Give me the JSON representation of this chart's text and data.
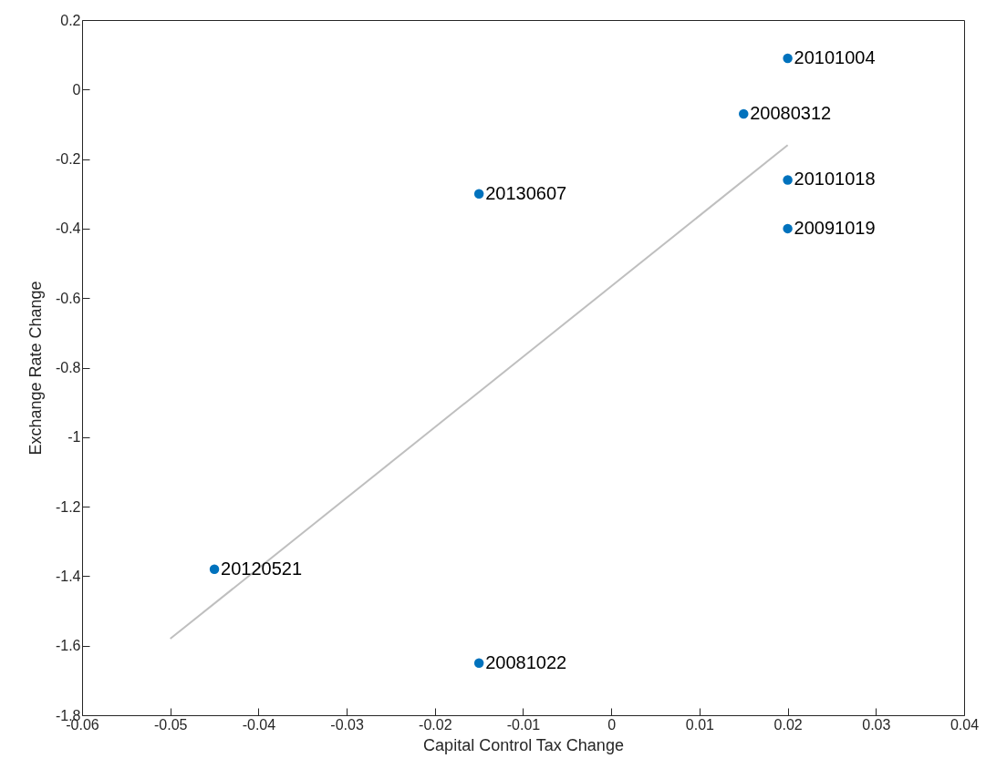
{
  "chart_data": {
    "type": "scatter",
    "xlabel": "Capital Control Tax Change",
    "ylabel": "Exchange Rate Change",
    "xlim": [
      -0.06,
      0.04
    ],
    "xticks": [
      -0.06,
      -0.05,
      -0.04,
      -0.03,
      -0.02,
      -0.01,
      0,
      0.01,
      0.02,
      0.03,
      0.04
    ],
    "ylim": [
      -1.8,
      0.2
    ],
    "yticks": [
      -1.8,
      -1.6,
      -1.4,
      -1.2,
      -1,
      -0.8,
      -0.6,
      -0.4,
      -0.2,
      0,
      0.2
    ],
    "series": [
      {
        "marker": "circle",
        "color": "#0072bd",
        "x": [
          0.02,
          0.015,
          0.02,
          0.02,
          -0.015,
          -0.045,
          -0.015
        ],
        "values": [
          0.09,
          -0.07,
          -0.26,
          -0.4,
          -0.3,
          -1.38,
          -1.65
        ]
      },
      {
        "type": "line",
        "color": "#bfbfbf",
        "x": [
          -0.05,
          0.02
        ],
        "values": [
          -1.58,
          -0.16
        ]
      }
    ],
    "annotations": [
      {
        "text": "20101004",
        "x": 0.02,
        "y": 0.09
      },
      {
        "text": "20080312",
        "x": 0.015,
        "y": -0.07
      },
      {
        "text": "20101018",
        "x": 0.02,
        "y": -0.26
      },
      {
        "text": "20091019",
        "x": 0.02,
        "y": -0.4
      },
      {
        "text": "20130607",
        "x": -0.015,
        "y": -0.3
      },
      {
        "text": "20120521",
        "x": -0.045,
        "y": -1.38
      },
      {
        "text": "20081022",
        "x": -0.015,
        "y": -1.65
      }
    ]
  }
}
